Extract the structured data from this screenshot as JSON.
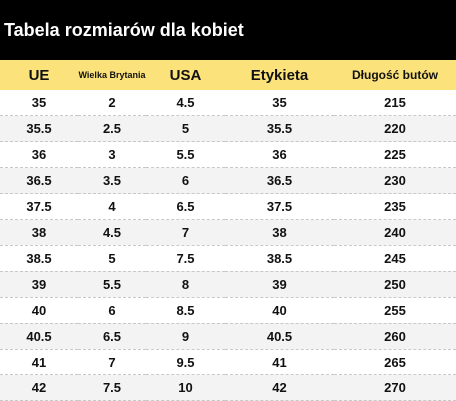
{
  "title": "Tabela rozmiarów dla kobiet",
  "headers": {
    "eu": "UE",
    "uk": "Wielka Brytania",
    "usa": "USA",
    "label": "Etykieta",
    "length": "Długość butów"
  },
  "rows": [
    {
      "eu": "35",
      "uk": "2",
      "usa": "4.5",
      "label": "35",
      "length": "215"
    },
    {
      "eu": "35.5",
      "uk": "2.5",
      "usa": "5",
      "label": "35.5",
      "length": "220"
    },
    {
      "eu": "36",
      "uk": "3",
      "usa": "5.5",
      "label": "36",
      "length": "225"
    },
    {
      "eu": "36.5",
      "uk": "3.5",
      "usa": "6",
      "label": "36.5",
      "length": "230"
    },
    {
      "eu": "37.5",
      "uk": "4",
      "usa": "6.5",
      "label": "37.5",
      "length": "235"
    },
    {
      "eu": "38",
      "uk": "4.5",
      "usa": "7",
      "label": "38",
      "length": "240"
    },
    {
      "eu": "38.5",
      "uk": "5",
      "usa": "7.5",
      "label": "38.5",
      "length": "245"
    },
    {
      "eu": "39",
      "uk": "5.5",
      "usa": "8",
      "label": "39",
      "length": "250"
    },
    {
      "eu": "40",
      "uk": "6",
      "usa": "8.5",
      "label": "40",
      "length": "255"
    },
    {
      "eu": "40.5",
      "uk": "6.5",
      "usa": "9",
      "label": "40.5",
      "length": "260"
    },
    {
      "eu": "41",
      "uk": "7",
      "usa": "9.5",
      "label": "41",
      "length": "265"
    },
    {
      "eu": "42",
      "uk": "7.5",
      "usa": "10",
      "label": "42",
      "length": "270"
    }
  ],
  "colors": {
    "title_background": "#000000",
    "header_background": "#fbe27a",
    "stripe_background": "#f3f3f3"
  }
}
